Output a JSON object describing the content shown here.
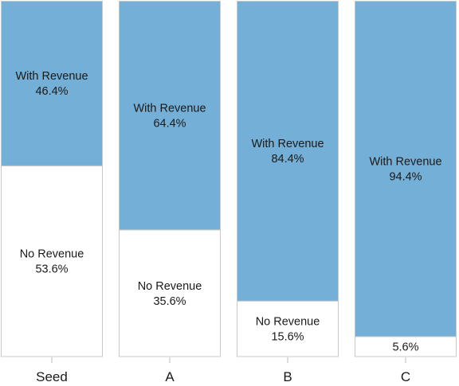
{
  "chart_data": {
    "type": "bar",
    "stacked": true,
    "normalized_percent": true,
    "categories": [
      "Seed",
      "A",
      "B",
      "C"
    ],
    "series": [
      {
        "name": "With Revenue",
        "values": [
          46.4,
          64.4,
          84.4,
          94.4
        ],
        "labels": [
          "46.4%",
          "64.4%",
          "84.4%",
          "94.4%"
        ],
        "color": "#73afd6"
      },
      {
        "name": "No Revenue",
        "values": [
          53.6,
          35.6,
          15.6,
          5.6
        ],
        "labels": [
          "53.6%",
          "35.6%",
          "15.6%",
          "5.6%"
        ],
        "color": "#ffffff",
        "label_names_shown": [
          true,
          true,
          true,
          false
        ]
      }
    ],
    "ylim": [
      0,
      100
    ],
    "grid": false,
    "legend": "none",
    "title": "",
    "xlabel": "",
    "ylabel": ""
  }
}
